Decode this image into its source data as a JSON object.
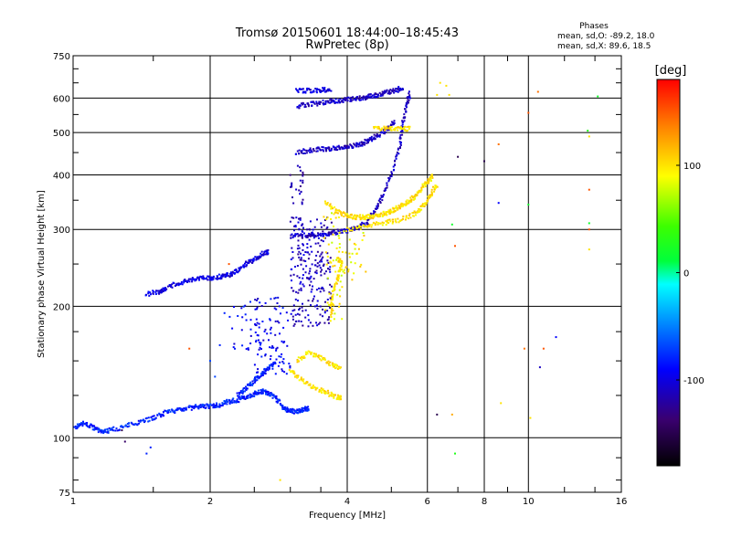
{
  "chart_data": {
    "type": "scatter",
    "title": "Tromsø 20150601 18:44:00–18:45:43",
    "subtitle": "RwPretec (8p)",
    "xlabel": "Frequency [MHz]",
    "ylabel": "Stationary phase Virtual Height [km]",
    "x_scale": "log",
    "y_scale": "log",
    "xlim": [
      1,
      16
    ],
    "ylim": [
      75,
      750
    ],
    "x_ticks": [
      1,
      2,
      4,
      6,
      8,
      10,
      16
    ],
    "x_tick_labels": [
      "1",
      "2",
      "4",
      "6",
      "8",
      "10",
      "16"
    ],
    "y_ticks": [
      75,
      100,
      200,
      300,
      400,
      500,
      600,
      750
    ],
    "y_tick_labels": [
      "75",
      "100",
      "200",
      "300",
      "400",
      "500",
      "600",
      "750"
    ],
    "grid": true,
    "phase_box": {
      "heading": "Phases",
      "line1": "mean, sd,O: -89.2, 18.0",
      "line2": "mean, sd,X:  89.6, 18.5"
    },
    "colorbar": {
      "unit_label": "[deg]",
      "min": -180,
      "max": 180,
      "ticks": [
        100,
        0,
        -100
      ],
      "tick_labels": [
        "100",
        "0",
        "-100"
      ]
    },
    "traces": [
      {
        "phase": -80,
        "jitter": 0.012,
        "pts": [
          [
            1.0,
            105
          ],
          [
            1.05,
            108
          ],
          [
            1.1,
            106
          ],
          [
            1.15,
            103
          ],
          [
            1.2,
            104
          ],
          [
            1.3,
            106
          ],
          [
            1.4,
            109
          ],
          [
            1.5,
            111
          ],
          [
            1.6,
            114
          ],
          [
            1.7,
            116
          ],
          [
            1.8,
            117
          ],
          [
            1.9,
            118
          ],
          [
            2.0,
            118
          ],
          [
            2.1,
            119
          ],
          [
            2.2,
            121
          ],
          [
            2.3,
            122
          ],
          [
            2.4,
            124
          ],
          [
            2.5,
            126
          ],
          [
            2.6,
            128
          ],
          [
            2.7,
            126
          ],
          [
            2.8,
            123
          ],
          [
            2.9,
            117
          ],
          [
            3.0,
            115
          ],
          [
            3.1,
            115
          ],
          [
            3.2,
            116
          ],
          [
            3.3,
            117
          ]
        ]
      },
      {
        "phase": -100,
        "jitter": 0.012,
        "pts": [
          [
            1.45,
            213
          ],
          [
            1.55,
            216
          ],
          [
            1.6,
            220
          ],
          [
            1.7,
            226
          ],
          [
            1.8,
            229
          ],
          [
            1.9,
            232
          ],
          [
            2.0,
            232
          ],
          [
            2.1,
            234
          ],
          [
            2.2,
            236
          ],
          [
            2.3,
            241
          ],
          [
            2.4,
            250
          ],
          [
            2.5,
            256
          ],
          [
            2.6,
            264
          ],
          [
            2.7,
            267
          ]
        ]
      },
      {
        "phase": -110,
        "jitter": 0.012,
        "pts": [
          [
            3.0,
            290
          ],
          [
            3.2,
            290
          ],
          [
            3.4,
            292
          ],
          [
            3.6,
            293
          ],
          [
            3.8,
            296
          ],
          [
            4.0,
            298
          ],
          [
            4.2,
            302
          ],
          [
            4.4,
            310
          ],
          [
            4.6,
            330
          ],
          [
            4.8,
            360
          ],
          [
            5.0,
            400
          ],
          [
            5.2,
            460
          ],
          [
            5.3,
            520
          ],
          [
            5.4,
            580
          ],
          [
            5.5,
            620
          ]
        ]
      },
      {
        "phase": -110,
        "jitter": 0.012,
        "pts": [
          [
            3.1,
            450
          ],
          [
            3.3,
            455
          ],
          [
            3.5,
            458
          ],
          [
            3.7,
            460
          ],
          [
            3.9,
            462
          ],
          [
            4.1,
            466
          ],
          [
            4.3,
            472
          ],
          [
            4.5,
            482
          ],
          [
            4.7,
            495
          ],
          [
            4.9,
            510
          ],
          [
            5.1,
            530
          ]
        ]
      },
      {
        "phase": -110,
        "jitter": 0.012,
        "pts": [
          [
            3.1,
            575
          ],
          [
            3.3,
            580
          ],
          [
            3.5,
            585
          ],
          [
            3.7,
            590
          ],
          [
            3.9,
            593
          ],
          [
            4.1,
            596
          ],
          [
            4.3,
            600
          ],
          [
            4.5,
            605
          ],
          [
            4.7,
            610
          ],
          [
            4.9,
            618
          ],
          [
            5.1,
            625
          ],
          [
            5.3,
            632
          ]
        ]
      },
      {
        "phase": -100,
        "jitter": 0.012,
        "pts": [
          [
            3.1,
            622
          ],
          [
            3.3,
            624
          ],
          [
            3.5,
            626
          ],
          [
            3.7,
            628
          ]
        ]
      },
      {
        "phase": 100,
        "jitter": 0.012,
        "pts": [
          [
            3.6,
            345
          ],
          [
            3.8,
            330
          ],
          [
            4.0,
            322
          ],
          [
            4.2,
            320
          ],
          [
            4.4,
            320
          ],
          [
            4.6,
            322
          ],
          [
            4.8,
            325
          ],
          [
            5.0,
            330
          ],
          [
            5.2,
            338
          ],
          [
            5.4,
            345
          ],
          [
            5.6,
            355
          ],
          [
            5.8,
            370
          ],
          [
            6.0,
            385
          ],
          [
            6.2,
            400
          ]
        ]
      },
      {
        "phase": 100,
        "jitter": 0.012,
        "pts": [
          [
            4.0,
            300
          ],
          [
            4.4,
            305
          ],
          [
            4.8,
            310
          ],
          [
            5.2,
            315
          ],
          [
            5.6,
            325
          ],
          [
            5.9,
            340
          ],
          [
            6.1,
            360
          ],
          [
            6.3,
            380
          ]
        ]
      },
      {
        "phase": 100,
        "jitter": 0.012,
        "pts": [
          [
            4.6,
            510
          ],
          [
            4.9,
            510
          ],
          [
            5.2,
            510
          ],
          [
            5.5,
            510
          ]
        ]
      },
      {
        "phase": 100,
        "jitter": 0.012,
        "pts": [
          [
            3.0,
            142
          ],
          [
            3.2,
            135
          ],
          [
            3.4,
            130
          ],
          [
            3.6,
            127
          ],
          [
            3.8,
            124
          ],
          [
            3.9,
            123
          ]
        ]
      },
      {
        "phase": 100,
        "jitter": 0.012,
        "pts": [
          [
            3.1,
            150
          ],
          [
            3.3,
            157
          ],
          [
            3.5,
            152
          ],
          [
            3.7,
            147
          ],
          [
            3.9,
            144
          ]
        ]
      },
      {
        "phase": 100,
        "jitter": 0.012,
        "pts": [
          [
            3.7,
            190
          ],
          [
            3.7,
            210
          ],
          [
            3.8,
            230
          ],
          [
            3.9,
            250
          ],
          [
            3.8,
            260
          ]
        ]
      },
      {
        "phase": -80,
        "jitter": 0.012,
        "pts": [
          [
            2.3,
            125
          ],
          [
            2.4,
            130
          ],
          [
            2.5,
            135
          ],
          [
            2.6,
            140
          ],
          [
            2.7,
            145
          ],
          [
            2.8,
            150
          ]
        ]
      }
    ],
    "blobs": [
      {
        "phase": -110,
        "x": [
          3.0,
          3.7
        ],
        "y": [
          180,
          320
        ],
        "n": 240
      },
      {
        "phase": -95,
        "x": [
          2.5,
          3.0
        ],
        "y": [
          140,
          210
        ],
        "n": 90
      },
      {
        "phase": -90,
        "x": [
          2.2,
          2.6
        ],
        "y": [
          155,
          205
        ],
        "n": 30
      },
      {
        "phase": -115,
        "x": [
          3.0,
          3.2
        ],
        "y": [
          330,
          420
        ],
        "n": 25
      },
      {
        "phase": 90,
        "x": [
          3.55,
          3.9
        ],
        "y": [
          185,
          330
        ],
        "n": 55
      },
      {
        "phase": 95,
        "x": [
          3.9,
          4.4
        ],
        "y": [
          230,
          300
        ],
        "n": 30
      }
    ],
    "sparse_points": [
      {
        "x": 1.45,
        "y": 92,
        "phase": -80
      },
      {
        "x": 1.48,
        "y": 95,
        "phase": -80
      },
      {
        "x": 1.3,
        "y": 98,
        "phase": -140
      },
      {
        "x": 1.28,
        "y": 104,
        "phase": -150
      },
      {
        "x": 1.8,
        "y": 160,
        "phase": 150
      },
      {
        "x": 2.0,
        "y": 150,
        "phase": -70
      },
      {
        "x": 2.1,
        "y": 163,
        "phase": -80
      },
      {
        "x": 2.15,
        "y": 193,
        "phase": -80
      },
      {
        "x": 2.2,
        "y": 250,
        "phase": 150
      },
      {
        "x": 2.3,
        "y": 190,
        "phase": -80
      },
      {
        "x": 2.05,
        "y": 138,
        "phase": -70
      },
      {
        "x": 2.85,
        "y": 80,
        "phase": 100
      },
      {
        "x": 6.3,
        "y": 113,
        "phase": -150
      },
      {
        "x": 6.3,
        "y": 610,
        "phase": 100
      },
      {
        "x": 6.4,
        "y": 650,
        "phase": 100
      },
      {
        "x": 6.6,
        "y": 640,
        "phase": 100
      },
      {
        "x": 6.7,
        "y": 610,
        "phase": 100
      },
      {
        "x": 6.8,
        "y": 308,
        "phase": 20
      },
      {
        "x": 6.9,
        "y": 275,
        "phase": 150
      },
      {
        "x": 6.8,
        "y": 113,
        "phase": 120
      },
      {
        "x": 6.9,
        "y": 92,
        "phase": 30
      },
      {
        "x": 7.0,
        "y": 440,
        "phase": -150
      },
      {
        "x": 8.0,
        "y": 430,
        "phase": -150
      },
      {
        "x": 8.6,
        "y": 345,
        "phase": -90
      },
      {
        "x": 8.6,
        "y": 470,
        "phase": 140
      },
      {
        "x": 8.7,
        "y": 120,
        "phase": 100
      },
      {
        "x": 9.8,
        "y": 160,
        "phase": 140
      },
      {
        "x": 10.0,
        "y": 555,
        "phase": 150
      },
      {
        "x": 10.0,
        "y": 342,
        "phase": 20
      },
      {
        "x": 10.1,
        "y": 111,
        "phase": 100
      },
      {
        "x": 10.5,
        "y": 620,
        "phase": 140
      },
      {
        "x": 10.6,
        "y": 145,
        "phase": -110
      },
      {
        "x": 10.8,
        "y": 160,
        "phase": 150
      },
      {
        "x": 11.5,
        "y": 170,
        "phase": -90
      },
      {
        "x": 13.5,
        "y": 505,
        "phase": 30
      },
      {
        "x": 13.6,
        "y": 490,
        "phase": 100
      },
      {
        "x": 13.6,
        "y": 370,
        "phase": 150
      },
      {
        "x": 13.6,
        "y": 310,
        "phase": 20
      },
      {
        "x": 13.6,
        "y": 300,
        "phase": 150
      },
      {
        "x": 13.6,
        "y": 270,
        "phase": 100
      },
      {
        "x": 14.2,
        "y": 605,
        "phase": 20
      }
    ]
  }
}
